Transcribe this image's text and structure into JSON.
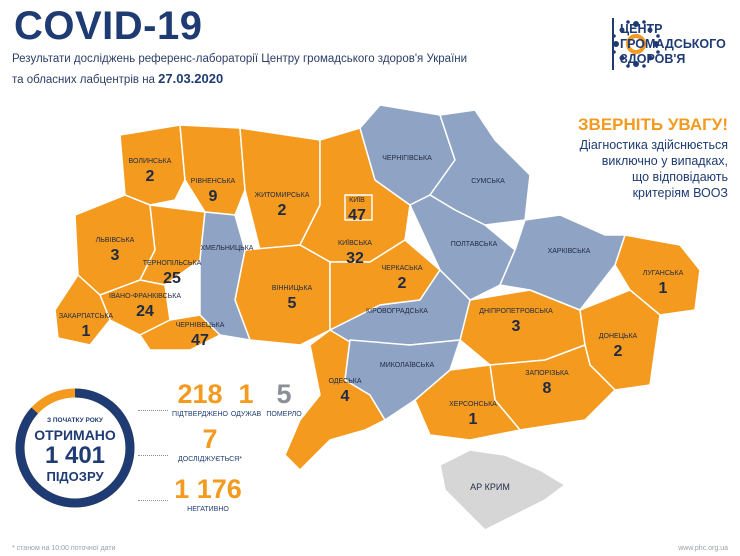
{
  "header": {
    "title": "COVID-19",
    "subtitle_line1": "Результати досліджень референс-лабораторії Центру громадського здоров'я України",
    "subtitle_line2": "та обласних лабцентрів на",
    "date": "27.03.2020"
  },
  "logo": {
    "line1": "ЦЕНТР",
    "line2": "ГРОМАДСЬКОГО",
    "line3": "ЗДОРОВ'Я"
  },
  "attention": {
    "title": "ЗВЕРНІТЬ УВАГУ!",
    "line1": "Діагностика здійснюється",
    "line2": "виключно у випадках,",
    "line3": "що відповідають",
    "line4": "критеріям ВООЗ"
  },
  "colors": {
    "affected": "#f39a1f",
    "unaffected": "#8fa3c4",
    "crimea": "#d6d6d6",
    "text_dark": "#1f3b73"
  },
  "regions": [
    {
      "id": "volyn",
      "label": "Волинська",
      "value": "2"
    },
    {
      "id": "rivne",
      "label": "Рівненська",
      "value": "9"
    },
    {
      "id": "zhytomyr",
      "label": "Житомирська",
      "value": "2"
    },
    {
      "id": "kyiv",
      "label": "Київ",
      "value": "47"
    },
    {
      "id": "kyiv_obl",
      "label": "Київська",
      "value": "32"
    },
    {
      "id": "chernihiv",
      "label": "Чернігівська",
      "value": ""
    },
    {
      "id": "sumy",
      "label": "Сумська",
      "value": ""
    },
    {
      "id": "lviv",
      "label": "Львівська",
      "value": "3"
    },
    {
      "id": "khmelnytskyi",
      "label": "Хмельницька",
      "value": ""
    },
    {
      "id": "ternopil",
      "label": "Тернопільська",
      "value": "25"
    },
    {
      "id": "ivano_frankivsk",
      "label": "Івано-Франківська",
      "value": "24"
    },
    {
      "id": "zakarpattia",
      "label": "Закарпатська",
      "value": "1"
    },
    {
      "id": "chernivtsi",
      "label": "Чернівецька",
      "value": "47"
    },
    {
      "id": "vinnytsia",
      "label": "Вінницька",
      "value": "5"
    },
    {
      "id": "cherkasy",
      "label": "Черкаська",
      "value": "2"
    },
    {
      "id": "poltava",
      "label": "Полтавська",
      "value": ""
    },
    {
      "id": "kharkiv",
      "label": "Харківська",
      "value": ""
    },
    {
      "id": "luhansk",
      "label": "Луганська",
      "value": "1"
    },
    {
      "id": "kirovohrad",
      "label": "Кіровоградська",
      "value": ""
    },
    {
      "id": "dnipro",
      "label": "Дніпропетровська",
      "value": "3"
    },
    {
      "id": "donetsk",
      "label": "Донецька",
      "value": "2"
    },
    {
      "id": "odesa",
      "label": "Одеська",
      "value": "4"
    },
    {
      "id": "mykolaiv",
      "label": "Миколаївська",
      "value": ""
    },
    {
      "id": "zaporizhzhia",
      "label": "Запорізька",
      "value": "8"
    },
    {
      "id": "kherson",
      "label": "Херсонська",
      "value": "1"
    },
    {
      "id": "crimea",
      "label": "АР Крим",
      "value": ""
    }
  ],
  "summary": {
    "ring_small": "З ПОЧАТКУ РОКУ",
    "ring_label": "ОТРИМАНО",
    "ring_number": "1 401",
    "ring_label2": "ПІДОЗРУ",
    "confirmed": "218",
    "confirmed_label": "ПІДТВЕРДЖЕНО",
    "recovered": "1",
    "recovered_label": "ОДУЖАВ",
    "died": "5",
    "died_label": "ПОМЕРЛО",
    "investigating": "7",
    "investigating_label": "ДОСЛІДЖУЄТЬСЯ*",
    "negative": "1 176",
    "negative_label": "НЕГАТИВНО"
  },
  "footer": {
    "note": "* станом на 10:00 поточної дати",
    "site": "www.phc.org.ua"
  }
}
